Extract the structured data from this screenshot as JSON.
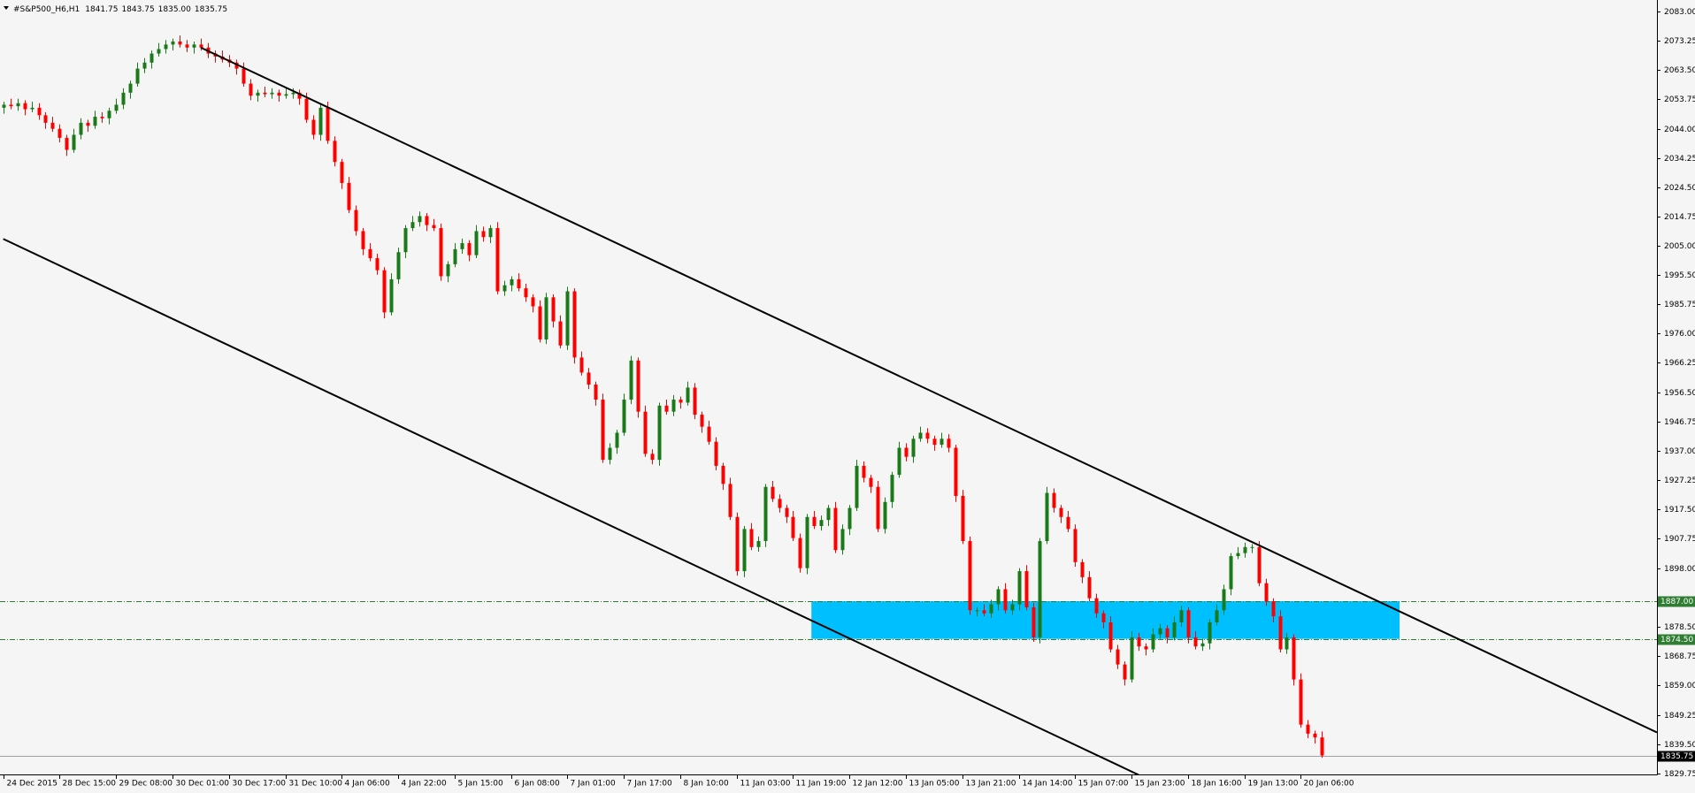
{
  "chart_data": {
    "type": "candlestick",
    "title": "#S&P500_H6,H1",
    "quote": [
      "1841.75",
      "1843.75",
      "1835.00",
      "1835.75"
    ],
    "up_color": "#1a7a1a",
    "down_color": "#ff0000",
    "xlim": [
      -0.46,
      234.5
    ],
    "ylim": [
      1829.45,
      2086.8
    ],
    "yticks": [
      {
        "value": 2083.0,
        "label": "2083.00"
      },
      {
        "value": 2073.25,
        "label": "2073.25"
      },
      {
        "value": 2063.5,
        "label": "2063.50"
      },
      {
        "value": 2053.75,
        "label": "2053.75"
      },
      {
        "value": 2044.0,
        "label": "2044.00"
      },
      {
        "value": 2034.25,
        "label": "2034.25"
      },
      {
        "value": 2024.5,
        "label": "2024.50"
      },
      {
        "value": 2014.75,
        "label": "2014.75"
      },
      {
        "value": 2005.0,
        "label": "2005.00"
      },
      {
        "value": 1995.5,
        "label": "1995.50"
      },
      {
        "value": 1985.75,
        "label": "1985.75"
      },
      {
        "value": 1976.0,
        "label": "1976.00"
      },
      {
        "value": 1966.25,
        "label": "1966.25"
      },
      {
        "value": 1956.5,
        "label": "1956.50"
      },
      {
        "value": 1946.75,
        "label": "1946.75"
      },
      {
        "value": 1937.0,
        "label": "1937.00"
      },
      {
        "value": 1927.25,
        "label": "1927.25"
      },
      {
        "value": 1917.5,
        "label": "1917.50"
      },
      {
        "value": 1907.75,
        "label": "1907.75"
      },
      {
        "value": 1898.0,
        "label": "1898.00"
      },
      {
        "value": 1878.5,
        "label": "1878.50"
      },
      {
        "value": 1868.75,
        "label": "1868.75"
      },
      {
        "value": 1859.0,
        "label": "1859.00"
      },
      {
        "value": 1849.25,
        "label": "1849.25"
      },
      {
        "value": 1839.5,
        "label": "1839.50"
      },
      {
        "value": 1829.75,
        "label": "1829.75"
      }
    ],
    "xticks": [
      {
        "value": 0,
        "label": "24 Dec 2015"
      },
      {
        "value": 8,
        "label": "28 Dec 15:00"
      },
      {
        "value": 16,
        "label": "29 Dec 08:00"
      },
      {
        "value": 24,
        "label": "30 Dec 01:00"
      },
      {
        "value": 32,
        "label": "30 Dec 17:00"
      },
      {
        "value": 40,
        "label": "31 Dec 10:00"
      },
      {
        "value": 48,
        "label": "4 Jan 06:00"
      },
      {
        "value": 56,
        "label": "4 Jan 22:00"
      },
      {
        "value": 64,
        "label": "5 Jan 15:00"
      },
      {
        "value": 72,
        "label": "6 Jan 08:00"
      },
      {
        "value": 80,
        "label": "7 Jan 01:00"
      },
      {
        "value": 88,
        "label": "7 Jan 17:00"
      },
      {
        "value": 96,
        "label": "8 Jan 10:00"
      },
      {
        "value": 104,
        "label": "11 Jan 03:00"
      },
      {
        "value": 112,
        "label": "11 Jan 19:00"
      },
      {
        "value": 120,
        "label": "12 Jan 12:00"
      },
      {
        "value": 128,
        "label": "13 Jan 05:00"
      },
      {
        "value": 136,
        "label": "13 Jan 21:00"
      },
      {
        "value": 144,
        "label": "14 Jan 14:00"
      },
      {
        "value": 152,
        "label": "15 Jan 07:00"
      },
      {
        "value": 160,
        "label": "15 Jan 23:00"
      },
      {
        "value": 168,
        "label": "18 Jan 16:00"
      },
      {
        "value": 176,
        "label": "19 Jan 13:00"
      },
      {
        "value": 184,
        "label": "20 Jan 06:00"
      }
    ],
    "levels": [
      {
        "value": 1887.0,
        "label": "1887.00"
      },
      {
        "value": 1874.5,
        "label": "1874.50"
      }
    ],
    "level_color": "#2e7d32",
    "bid": {
      "value": 1835.75,
      "label": "1835.75"
    },
    "zone": {
      "x": [
        114.6,
        198
      ],
      "y": [
        1874.5,
        1887
      ],
      "color": "#00bfff"
    },
    "trendlines": [
      {
        "x": [
          28,
          234.5
        ],
        "y": [
          2071,
          1843.4
        ]
      },
      {
        "x": [
          0,
          161
        ],
        "y": [
          2007.4,
          1829.3
        ]
      }
    ],
    "candles": [
      [
        2051,
        2053,
        2049,
        2052
      ],
      [
        2052,
        2054,
        2050.5,
        2051.5
      ],
      [
        2051.5,
        2054,
        2050,
        2052.5
      ],
      [
        2052.5,
        2053.5,
        2048.5,
        2050.5
      ],
      [
        2050.5,
        2053,
        2049.5,
        2051
      ],
      [
        2051,
        2052.5,
        2047,
        2048.5
      ],
      [
        2048.5,
        2049.5,
        2044,
        2046
      ],
      [
        2046,
        2048,
        2043,
        2044
      ],
      [
        2044,
        2045.5,
        2039.5,
        2041
      ],
      [
        2041,
        2042,
        2035,
        2037
      ],
      [
        2037,
        2044,
        2036,
        2042
      ],
      [
        2042,
        2047.5,
        2040.5,
        2046
      ],
      [
        2046,
        2047,
        2043,
        2045
      ],
      [
        2045,
        2050,
        2044,
        2048
      ],
      [
        2048,
        2049.5,
        2046,
        2047.5
      ],
      [
        2047.5,
        2051,
        2045.5,
        2050
      ],
      [
        2050,
        2054,
        2049,
        2052
      ],
      [
        2052,
        2057.5,
        2050.5,
        2056
      ],
      [
        2056,
        2060,
        2054,
        2059
      ],
      [
        2059,
        2066,
        2058,
        2064
      ],
      [
        2064,
        2067.5,
        2062.5,
        2066
      ],
      [
        2066,
        2070,
        2064,
        2069
      ],
      [
        2069,
        2072.5,
        2068,
        2070.5
      ],
      [
        2070.5,
        2073.5,
        2069,
        2072
      ],
      [
        2072,
        2074,
        2070,
        2073
      ],
      [
        2073,
        2075,
        2071,
        2072
      ],
      [
        2072,
        2073.5,
        2069.5,
        2071
      ],
      [
        2071,
        2073,
        2069,
        2072
      ],
      [
        2072,
        2074,
        2070,
        2071
      ],
      [
        2071,
        2072.5,
        2067.5,
        2069
      ],
      [
        2069,
        2070,
        2066,
        2068
      ],
      [
        2068,
        2070,
        2066,
        2067
      ],
      [
        2067,
        2068.5,
        2064.5,
        2066
      ],
      [
        2066,
        2067,
        2062,
        2064
      ],
      [
        2064,
        2066,
        2058,
        2059
      ],
      [
        2059,
        2060.5,
        2053.5,
        2055
      ],
      [
        2055,
        2057,
        2053,
        2056
      ],
      [
        2056,
        2058,
        2054.5,
        2055.5
      ],
      [
        2055.5,
        2057.5,
        2054,
        2056
      ],
      [
        2056,
        2057,
        2053,
        2055
      ],
      [
        2055,
        2057.5,
        2054,
        2055.5
      ],
      [
        2055.5,
        2057.5,
        2054,
        2056
      ],
      [
        2056,
        2057,
        2052,
        2054
      ],
      [
        2054,
        2056,
        2046,
        2047
      ],
      [
        2047,
        2048.5,
        2040.5,
        2042
      ],
      [
        2042,
        2052,
        2040,
        2051
      ],
      [
        2051,
        2053,
        2039,
        2040
      ],
      [
        2040,
        2041.5,
        2031.5,
        2033
      ],
      [
        2033,
        2034,
        2024,
        2026
      ],
      [
        2026,
        2028,
        2016,
        2017
      ],
      [
        2017,
        2018.5,
        2008.5,
        2010
      ],
      [
        2010,
        2011,
        2002,
        2004
      ],
      [
        2004,
        2006,
        2000,
        2001
      ],
      [
        2001,
        2002.5,
        1995.5,
        1997
      ],
      [
        1997,
        1998,
        1981,
        1983
      ],
      [
        1983,
        1996,
        1982,
        1994
      ],
      [
        1994,
        2004.5,
        1992.5,
        2003
      ],
      [
        2003,
        2012,
        2001,
        2011
      ],
      [
        2011,
        2015,
        2010,
        2013
      ],
      [
        2013,
        2016.5,
        2011.5,
        2015
      ],
      [
        2015,
        2016,
        2010,
        2012
      ],
      [
        2012,
        2014,
        2010,
        2011
      ],
      [
        2011,
        2012.5,
        1993.5,
        1995
      ],
      [
        1995,
        2000,
        1993,
        1999
      ],
      [
        1999,
        2006,
        1998,
        2004
      ],
      [
        2004,
        2007.5,
        2002.5,
        2006
      ],
      [
        2006,
        2007,
        2000,
        2002
      ],
      [
        2002,
        2012,
        2001,
        2010
      ],
      [
        2010,
        2011.5,
        2006.5,
        2008
      ],
      [
        2008,
        2012,
        2006,
        2011
      ],
      [
        2011,
        2013,
        1989,
        1990
      ],
      [
        1990,
        1993.5,
        1988.5,
        1992
      ],
      [
        1992,
        1995,
        1990,
        1994
      ],
      [
        1994,
        1996,
        1990,
        1991
      ],
      [
        1991,
        1992.5,
        1986.5,
        1988
      ],
      [
        1988,
        1989,
        1983,
        1985
      ],
      [
        1985,
        1987,
        1973,
        1974
      ],
      [
        1974,
        1989.5,
        1972.5,
        1988
      ],
      [
        1988,
        1989,
        1978,
        1980
      ],
      [
        1980,
        1982,
        1971,
        1972
      ],
      [
        1972,
        1991.5,
        1970.5,
        1990
      ],
      [
        1990,
        1991,
        1966,
        1968
      ],
      [
        1968,
        1970,
        1962,
        1963
      ],
      [
        1963,
        1964.5,
        1957.5,
        1959
      ],
      [
        1959,
        1960,
        1952,
        1954
      ],
      [
        1954,
        1956,
        1933,
        1934
      ],
      [
        1934,
        1939.5,
        1932.5,
        1938
      ],
      [
        1938,
        1944,
        1936,
        1943
      ],
      [
        1943,
        1956,
        1942,
        1954
      ],
      [
        1954,
        1968.5,
        1952.5,
        1967
      ],
      [
        1967,
        1968,
        1948,
        1950
      ],
      [
        1950,
        1952,
        1935,
        1936
      ],
      [
        1936,
        1937.5,
        1932.5,
        1934
      ],
      [
        1934,
        1953,
        1932,
        1952
      ],
      [
        1952,
        1954,
        1949,
        1950
      ],
      [
        1950,
        1955.5,
        1948.5,
        1954
      ],
      [
        1954,
        1955,
        1951,
        1953
      ],
      [
        1953,
        1960,
        1952,
        1958
      ],
      [
        1958,
        1959.5,
        1947.5,
        1949
      ],
      [
        1949,
        1950,
        1943,
        1945
      ],
      [
        1945,
        1947,
        1939,
        1940
      ],
      [
        1940,
        1941.5,
        1930.5,
        1932
      ],
      [
        1932,
        1933,
        1924,
        1926
      ],
      [
        1926,
        1928,
        1914,
        1915
      ],
      [
        1915,
        1916.5,
        1895.5,
        1897
      ],
      [
        1897,
        1912,
        1895,
        1911
      ],
      [
        1911,
        1913,
        1904,
        1905
      ],
      [
        1905,
        1908.5,
        1903.5,
        1907
      ],
      [
        1907,
        1926,
        1905,
        1925
      ],
      [
        1925,
        1927,
        1920,
        1921
      ],
      [
        1921,
        1922.5,
        1916.5,
        1918
      ],
      [
        1918,
        1919,
        1913,
        1915
      ],
      [
        1915,
        1917,
        1907,
        1908
      ],
      [
        1908,
        1909.5,
        1896.5,
        1898
      ],
      [
        1898,
        1916,
        1896,
        1915
      ],
      [
        1915,
        1917,
        1911,
        1912
      ],
      [
        1912,
        1915.5,
        1910.5,
        1914
      ],
      [
        1914,
        1919,
        1912,
        1918
      ],
      [
        1918,
        1920,
        1903,
        1904
      ],
      [
        1904,
        1912.5,
        1902.5,
        1911
      ],
      [
        1911,
        1919,
        1909,
        1918
      ],
      [
        1918,
        1934,
        1917,
        1932
      ],
      [
        1932,
        1933.5,
        1926.5,
        1928
      ],
      [
        1928,
        1929,
        1923,
        1925
      ],
      [
        1925,
        1927,
        1910,
        1911
      ],
      [
        1911,
        1921.5,
        1909.5,
        1920
      ],
      [
        1920,
        1930,
        1918,
        1929
      ],
      [
        1929,
        1940,
        1928,
        1938
      ],
      [
        1938,
        1939.5,
        1933.5,
        1935
      ],
      [
        1935,
        1942,
        1933,
        1941
      ],
      [
        1941,
        1945,
        1940,
        1943
      ],
      [
        1943,
        1944.5,
        1939.5,
        1941
      ],
      [
        1941,
        1942,
        1937,
        1939
      ],
      [
        1939,
        1943,
        1938,
        1941
      ],
      [
        1941,
        1942.5,
        1936.5,
        1938
      ],
      [
        1938,
        1939,
        1920,
        1922
      ],
      [
        1922,
        1924,
        1906,
        1907
      ],
      [
        1907,
        1908.5,
        1882.5,
        1884
      ],
      [
        1884,
        1885,
        1882,
        1884
      ],
      [
        1884,
        1886,
        1882,
        1883
      ],
      [
        1883,
        1887.5,
        1881.5,
        1886
      ],
      [
        1886,
        1892,
        1884,
        1891
      ],
      [
        1891,
        1893,
        1883,
        1884
      ],
      [
        1884,
        1887.5,
        1882.5,
        1886
      ],
      [
        1886,
        1898,
        1884,
        1897
      ],
      [
        1897,
        1899,
        1884,
        1885
      ],
      [
        1885,
        1886.5,
        1873.5,
        1875
      ],
      [
        1875,
        1908,
        1873,
        1907
      ],
      [
        1907,
        1925,
        1906,
        1923
      ],
      [
        1923,
        1924.5,
        1916.5,
        1918
      ],
      [
        1918,
        1919,
        1913,
        1915
      ],
      [
        1915,
        1917,
        1910,
        1911
      ],
      [
        1911,
        1912.5,
        1898.5,
        1900
      ],
      [
        1900,
        1901,
        1893,
        1895
      ],
      [
        1895,
        1897,
        1887,
        1888
      ],
      [
        1888,
        1889.5,
        1881.5,
        1883
      ],
      [
        1883,
        1884,
        1878,
        1880
      ],
      [
        1880,
        1882,
        1870,
        1871
      ],
      [
        1871,
        1872.5,
        1864.5,
        1866
      ],
      [
        1866,
        1867,
        1859,
        1861
      ],
      [
        1861,
        1877,
        1860,
        1875
      ],
      [
        1875,
        1876.5,
        1870.5,
        1872
      ],
      [
        1872,
        1873,
        1869,
        1871
      ],
      [
        1871,
        1878,
        1870,
        1876
      ],
      [
        1876,
        1879.5,
        1874.5,
        1878
      ],
      [
        1878,
        1879,
        1873,
        1875
      ],
      [
        1875,
        1882,
        1874,
        1880
      ],
      [
        1880,
        1885.5,
        1878.5,
        1884
      ],
      [
        1884,
        1885,
        1873,
        1875
      ],
      [
        1875,
        1877,
        1871,
        1872
      ],
      [
        1872,
        1874.5,
        1870.5,
        1873
      ],
      [
        1873,
        1881,
        1871,
        1880
      ],
      [
        1880,
        1886,
        1879,
        1884
      ],
      [
        1884,
        1892.5,
        1882.5,
        1891
      ],
      [
        1891,
        1903,
        1889,
        1902
      ],
      [
        1902,
        1905,
        1901,
        1903
      ],
      [
        1903,
        1906.5,
        1901.5,
        1905
      ],
      [
        1905,
        1906,
        1903,
        1905
      ],
      [
        1905,
        1907,
        1892,
        1893
      ],
      [
        1893,
        1894.5,
        1885.5,
        1887
      ],
      [
        1887,
        1888,
        1880,
        1882
      ],
      [
        1882,
        1884,
        1870,
        1871
      ],
      [
        1871,
        1876.5,
        1869.5,
        1875
      ],
      [
        1875,
        1876,
        1859,
        1861
      ],
      [
        1861,
        1863,
        1845,
        1846
      ],
      [
        1846,
        1847.5,
        1841.5,
        1843
      ],
      [
        1843,
        1844,
        1839.75,
        1841.75
      ],
      [
        1841.75,
        1843.75,
        1835,
        1835.75
      ]
    ]
  }
}
